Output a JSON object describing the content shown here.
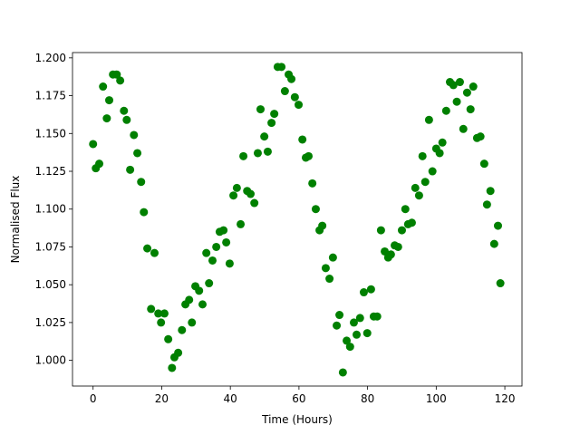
{
  "chart_data": {
    "type": "scatter",
    "x_label": "Time (Hours)",
    "y_label": "Normalised Flux",
    "color": "#008000",
    "x": [
      0,
      0.8,
      1.8,
      2.9,
      4,
      4.7,
      5.8,
      6.9,
      7.9,
      9,
      9.8,
      10.8,
      11.9,
      12.9,
      14,
      14.8,
      15.8,
      16.9,
      17.9,
      19,
      19.8,
      20.8,
      21.9,
      23,
      23.7,
      24.8,
      25.9,
      26.9,
      28,
      28.8,
      29.8,
      30.9,
      31.9,
      33,
      33.8,
      34.8,
      35.9,
      36.9,
      38,
      38.8,
      39.8,
      40.9,
      41.9,
      43,
      43.8,
      44.9,
      45.9,
      47,
      48,
      48.8,
      49.9,
      50.9,
      52,
      52.8,
      53.8,
      54.9,
      55.9,
      57,
      57.8,
      58.8,
      59.9,
      61,
      62,
      62.8,
      63.9,
      64.9,
      66,
      66.8,
      67.8,
      68.9,
      69.9,
      71,
      71.8,
      72.8,
      73.9,
      74.9,
      76,
      76.8,
      77.8,
      78.9,
      79.9,
      81,
      81.8,
      82.8,
      83.9,
      85,
      86,
      86.8,
      87.9,
      88.9,
      90,
      91,
      91.8,
      92.9,
      93.9,
      95,
      96,
      96.8,
      97.9,
      98.9,
      100,
      101,
      101.8,
      102.9,
      104,
      105,
      106,
      106.9,
      107.9,
      109,
      110,
      110.8,
      111.9,
      112.9,
      114,
      114.8,
      115.8,
      116.9,
      118,
      118.7
    ],
    "values": [
      1.143,
      1.127,
      1.13,
      1.181,
      1.16,
      1.172,
      1.189,
      1.189,
      1.185,
      1.165,
      1.159,
      1.126,
      1.149,
      1.137,
      1.118,
      1.098,
      1.074,
      1.034,
      1.071,
      1.031,
      1.025,
      1.031,
      1.014,
      0.995,
      1.002,
      1.005,
      1.02,
      1.037,
      1.04,
      1.025,
      1.049,
      1.046,
      1.037,
      1.071,
      1.051,
      1.066,
      1.075,
      1.085,
      1.086,
      1.078,
      1.064,
      1.109,
      1.114,
      1.09,
      1.135,
      1.112,
      1.11,
      1.104,
      1.137,
      1.166,
      1.148,
      1.138,
      1.157,
      1.163,
      1.194,
      1.194,
      1.178,
      1.189,
      1.186,
      1.174,
      1.169,
      1.146,
      1.134,
      1.135,
      1.117,
      1.1,
      1.086,
      1.089,
      1.061,
      1.054,
      1.068,
      1.023,
      1.03,
      0.992,
      1.013,
      1.009,
      1.025,
      1.017,
      1.028,
      1.045,
      1.018,
      1.047,
      1.029,
      1.029,
      1.086,
      1.072,
      1.068,
      1.07,
      1.076,
      1.075,
      1.086,
      1.1,
      1.09,
      1.091,
      1.114,
      1.109,
      1.135,
      1.118,
      1.159,
      1.125,
      1.14,
      1.137,
      1.144,
      1.165,
      1.184,
      1.182,
      1.171,
      1.184,
      1.153,
      1.177,
      1.166,
      1.181,
      1.147,
      1.148,
      1.13,
      1.103,
      1.112,
      1.077,
      1.089,
      1.051
    ],
    "xlim": [
      -6,
      125
    ],
    "ylim": [
      0.983,
      1.2035
    ],
    "xticks": [
      0,
      20,
      40,
      60,
      80,
      100,
      120
    ],
    "yticks": [
      {
        "value": 1.0,
        "label": "1.000"
      },
      {
        "value": 1.025,
        "label": "1.025"
      },
      {
        "value": 1.05,
        "label": "1.050"
      },
      {
        "value": 1.075,
        "label": "1.075"
      },
      {
        "value": 1.1,
        "label": "1.100"
      },
      {
        "value": 1.125,
        "label": "1.125"
      },
      {
        "value": 1.15,
        "label": "1.150"
      },
      {
        "value": 1.175,
        "label": "1.175"
      },
      {
        "value": 1.2,
        "label": "1.200"
      }
    ],
    "grid": false
  }
}
